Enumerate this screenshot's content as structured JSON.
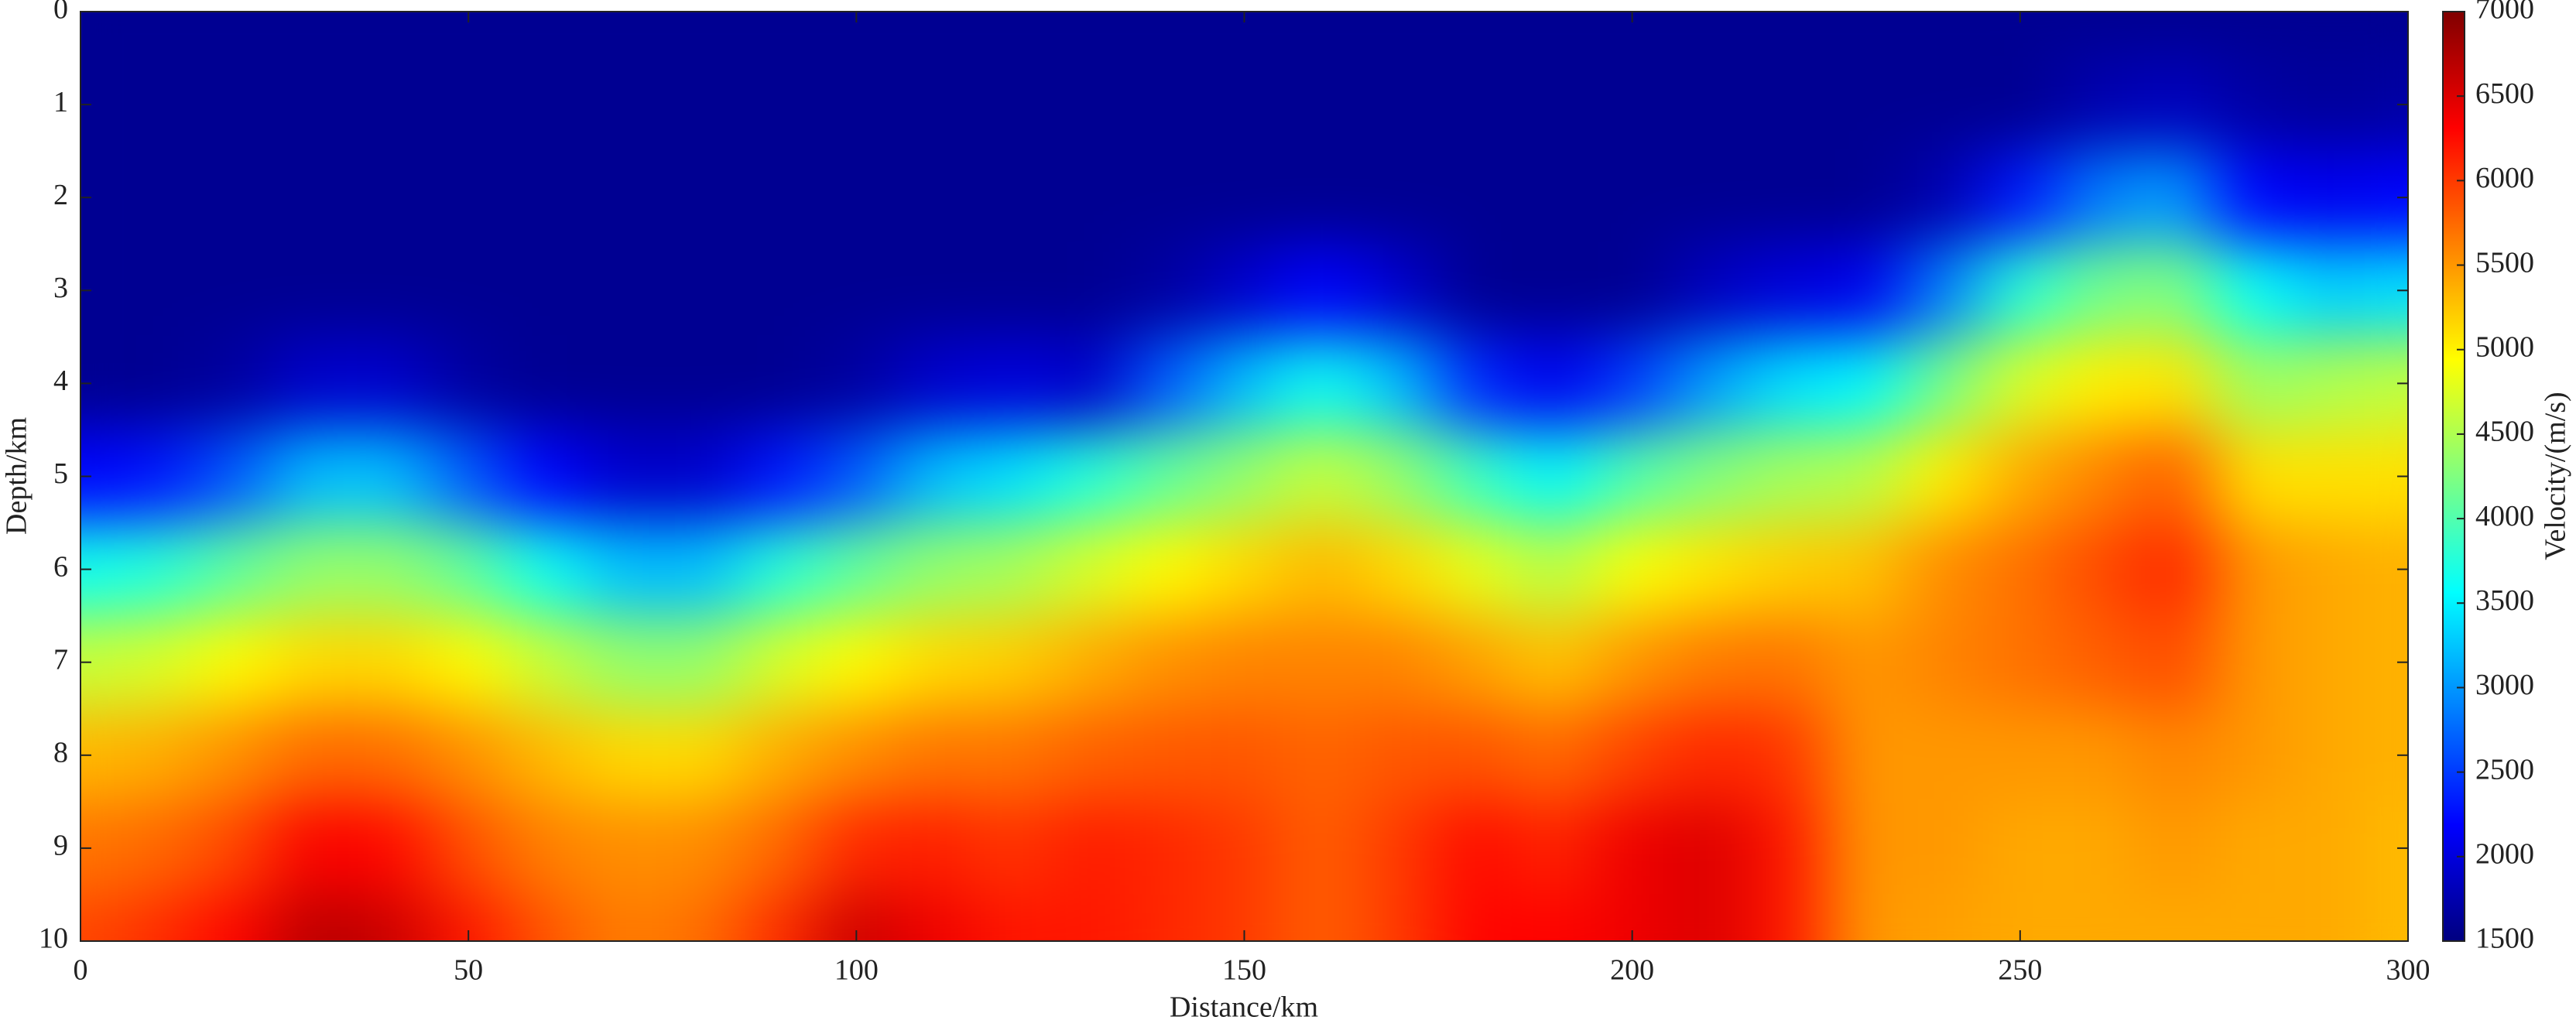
{
  "chart_data": {
    "type": "heatmap",
    "xlabel": "Distance/km",
    "ylabel": "Depth/km",
    "x": [
      0,
      10,
      20,
      30,
      40,
      50,
      60,
      70,
      80,
      90,
      100,
      110,
      120,
      130,
      140,
      150,
      160,
      170,
      180,
      190,
      200,
      210,
      220,
      230,
      240,
      250,
      260,
      270,
      280,
      290,
      300
    ],
    "y": [
      0,
      1,
      2,
      3,
      4,
      5,
      6,
      7,
      8,
      9,
      10
    ],
    "values": [
      [
        1600,
        1600,
        1600,
        1600,
        1600,
        2200,
        3640,
        4630,
        5320,
        5680,
        5930
      ],
      [
        1600,
        1600,
        1600,
        1600,
        1600,
        2300,
        3760,
        4720,
        5380,
        5750,
        6070
      ],
      [
        1600,
        1600,
        1600,
        1600,
        1680,
        2680,
        4090,
        4960,
        5540,
        5940,
        6300
      ],
      [
        1600,
        1600,
        1600,
        1600,
        1920,
        3220,
        4360,
        5140,
        5740,
        6340,
        6700
      ],
      [
        1600,
        1600,
        1600,
        1600,
        1920,
        3220,
        4360,
        5140,
        5720,
        6270,
        6600
      ],
      [
        1600,
        1600,
        1600,
        1600,
        1680,
        2680,
        4090,
        4960,
        5530,
        5880,
        6200
      ],
      [
        1600,
        1600,
        1600,
        1600,
        1600,
        2200,
        3640,
        4630,
        5310,
        5620,
        5860
      ],
      [
        1600,
        1600,
        1600,
        1600,
        1600,
        1920,
        3220,
        4360,
        5140,
        5540,
        5640
      ],
      [
        1600,
        1600,
        1600,
        1600,
        1600,
        1920,
        3220,
        4360,
        5140,
        5560,
        5720
      ],
      [
        1600,
        1600,
        1600,
        1600,
        1600,
        2300,
        3760,
        4720,
        5380,
        5750,
        6070
      ],
      [
        1600,
        1600,
        1600,
        1600,
        1680,
        2680,
        4090,
        4960,
        5560,
        6100,
        6600
      ],
      [
        1600,
        1600,
        1600,
        1600,
        1920,
        3220,
        4360,
        5140,
        5680,
        6150,
        6400
      ],
      [
        1600,
        1600,
        1600,
        1600,
        2000,
        3400,
        4450,
        5200,
        5680,
        6030,
        6200
      ],
      [
        1600,
        1600,
        1600,
        1600,
        1900,
        3760,
        4720,
        5380,
        5790,
        6160,
        6200
      ],
      [
        1600,
        1600,
        1600,
        1680,
        2680,
        4090,
        4960,
        5530,
        5830,
        6100,
        6100
      ],
      [
        1600,
        1600,
        1600,
        1920,
        3220,
        4360,
        5140,
        5600,
        5850,
        6000,
        6000
      ],
      [
        1600,
        1600,
        1600,
        2200,
        3640,
        4630,
        5320,
        5600,
        5770,
        5800,
        5800
      ],
      [
        1600,
        1600,
        1600,
        1920,
        3220,
        4360,
        5140,
        5600,
        5850,
        6000,
        6000
      ],
      [
        1600,
        1600,
        1600,
        1600,
        2400,
        3880,
        4810,
        5440,
        5860,
        6260,
        6300
      ],
      [
        1600,
        1600,
        1600,
        1600,
        2100,
        3520,
        4540,
        5260,
        5740,
        6120,
        6300
      ],
      [
        1600,
        1600,
        1600,
        1600,
        2500,
        4000,
        4900,
        5500,
        5950,
        6400,
        6400
      ],
      [
        1600,
        1600,
        1600,
        1840,
        3040,
        4270,
        5080,
        5650,
        6100,
        6500,
        6500
      ],
      [
        1600,
        1600,
        1600,
        2000,
        3400,
        4450,
        5200,
        5680,
        6030,
        6200,
        6200
      ],
      [
        1600,
        1600,
        1600,
        2100,
        3520,
        4540,
        5260,
        5500,
        5500,
        5500,
        5500
      ],
      [
        1600,
        1600,
        1760,
        2860,
        4180,
        5020,
        5550,
        5600,
        5500,
        5500,
        5450
      ],
      [
        1600,
        1600,
        2300,
        3760,
        4720,
        5380,
        5700,
        5700,
        5500,
        5400,
        5400
      ],
      [
        1600,
        1760,
        2860,
        4180,
        5020,
        5600,
        5900,
        5800,
        5500,
        5400,
        5400
      ],
      [
        1600,
        1840,
        3040,
        4270,
        5080,
        5800,
        6100,
        5900,
        5600,
        5500,
        5400
      ],
      [
        1600,
        1700,
        2200,
        3600,
        4400,
        5100,
        5500,
        5500,
        5500,
        5400,
        5400
      ],
      [
        1600,
        1650,
        2100,
        3300,
        4500,
        5100,
        5400,
        5400,
        5400,
        5400,
        5400
      ],
      [
        1600,
        1700,
        2200,
        3400,
        4600,
        5100,
        5350,
        5350,
        5350,
        5300,
        5300
      ]
    ],
    "xlim": [
      0,
      300
    ],
    "xticks": [
      0,
      50,
      100,
      150,
      200,
      250,
      300
    ],
    "ylim": [
      0,
      10
    ],
    "y_reversed": true,
    "yticks": [
      0,
      1,
      2,
      3,
      4,
      5,
      6,
      7,
      8,
      9,
      10
    ],
    "colormap": "jet",
    "colorbar": {
      "label": "Velocity/(m/s)",
      "lim": [
        1500,
        7000
      ],
      "ticks": [
        1500,
        2000,
        2500,
        3000,
        3500,
        4000,
        4500,
        5000,
        5500,
        6000,
        6500,
        7000
      ]
    }
  }
}
